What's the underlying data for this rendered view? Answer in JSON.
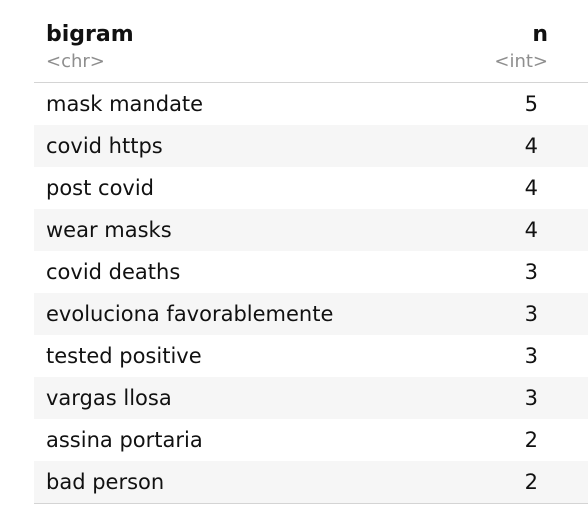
{
  "table": {
    "columns": [
      {
        "name": "bigram",
        "type": "<chr>"
      },
      {
        "name": "n",
        "type": "<int>"
      }
    ],
    "rows": [
      {
        "bigram": "mask mandate",
        "n": "5"
      },
      {
        "bigram": "covid https",
        "n": "4"
      },
      {
        "bigram": "post covid",
        "n": "4"
      },
      {
        "bigram": "wear masks",
        "n": "4"
      },
      {
        "bigram": "covid deaths",
        "n": "3"
      },
      {
        "bigram": "evoluciona favorablemente",
        "n": "3"
      },
      {
        "bigram": "tested positive",
        "n": "3"
      },
      {
        "bigram": "vargas llosa",
        "n": "3"
      },
      {
        "bigram": "assina portaria",
        "n": "2"
      },
      {
        "bigram": "bad person",
        "n": "2"
      }
    ]
  }
}
